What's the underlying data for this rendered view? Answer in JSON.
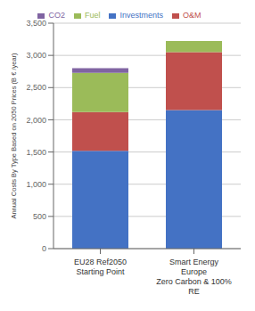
{
  "chart_data": {
    "type": "bar",
    "stacked": true,
    "grid": true,
    "legend": "top",
    "categories": [
      "EU28 Ref2050\nStarting Point",
      "Smart Energy\nEurope\nZero Carbon & 100%\nRE"
    ],
    "series": [
      {
        "name": "Investments",
        "color": "#4472C4",
        "values": [
          1520,
          2150
        ]
      },
      {
        "name": "O&M",
        "color": "#C0504D",
        "values": [
          600,
          900
        ]
      },
      {
        "name": "Fuel",
        "color": "#9BBB59",
        "values": [
          610,
          175
        ]
      },
      {
        "name": "CO2",
        "color": "#8064A2",
        "values": [
          70,
          0
        ]
      }
    ],
    "ylabel": "Annual Costs By Type Based on 2050 Prices (B € /year)",
    "ylim": [
      0,
      3500
    ],
    "yticks": [
      0,
      500,
      {
        "value": 1000,
        "label": "1,000"
      },
      {
        "value": 1500,
        "label": "1,500"
      },
      {
        "value": 2000,
        "label": "2,000"
      },
      {
        "value": 2500,
        "label": "2,500"
      },
      {
        "value": 3000,
        "label": "3,000"
      },
      {
        "value": 3500,
        "label": "3,500"
      }
    ]
  }
}
